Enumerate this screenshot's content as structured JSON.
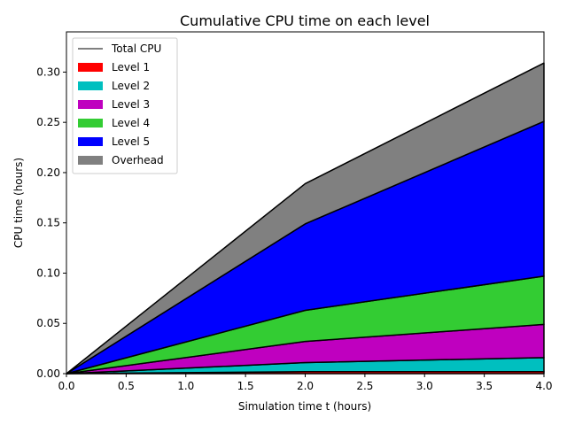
{
  "chart_data": {
    "type": "area",
    "stacked": true,
    "title": "Cumulative CPU time on each level",
    "xlabel": "Simulation time t (hours)",
    "ylabel": "CPU time (hours)",
    "xlim": [
      0,
      4
    ],
    "ylim": [
      0,
      0.34
    ],
    "x": [
      0,
      2,
      4
    ],
    "xticks": [
      0,
      0.5,
      1,
      1.5,
      2,
      2.5,
      3,
      3.5,
      4
    ],
    "xtick_labels": [
      "0.0",
      "0.5",
      "1.0",
      "1.5",
      "2.0",
      "2.5",
      "3.0",
      "3.5",
      "4.0"
    ],
    "yticks": [
      0,
      0.05,
      0.1,
      0.15,
      0.2,
      0.25,
      0.3
    ],
    "ytick_labels": [
      "0.00",
      "0.05",
      "0.10",
      "0.15",
      "0.20",
      "0.25",
      "0.30"
    ],
    "grid": false,
    "legend_position": "top-left",
    "total_line": {
      "name": "Total CPU",
      "values": [
        0,
        0.189,
        0.309
      ],
      "color": "#000000"
    },
    "series": [
      {
        "name": "Level 1",
        "values": [
          0,
          0.002,
          0.002
        ],
        "color": "#ff0000"
      },
      {
        "name": "Level 2",
        "values": [
          0,
          0.009,
          0.014
        ],
        "color": "#00bfbf"
      },
      {
        "name": "Level 3",
        "values": [
          0,
          0.021,
          0.033
        ],
        "color": "#bf00bf"
      },
      {
        "name": "Level 4",
        "values": [
          0,
          0.031,
          0.048
        ],
        "color": "#33cc33"
      },
      {
        "name": "Level 5",
        "values": [
          0,
          0.086,
          0.154
        ],
        "color": "#0000ff"
      },
      {
        "name": "Overhead",
        "values": [
          0,
          0.04,
          0.058
        ],
        "color": "#808080"
      }
    ]
  }
}
